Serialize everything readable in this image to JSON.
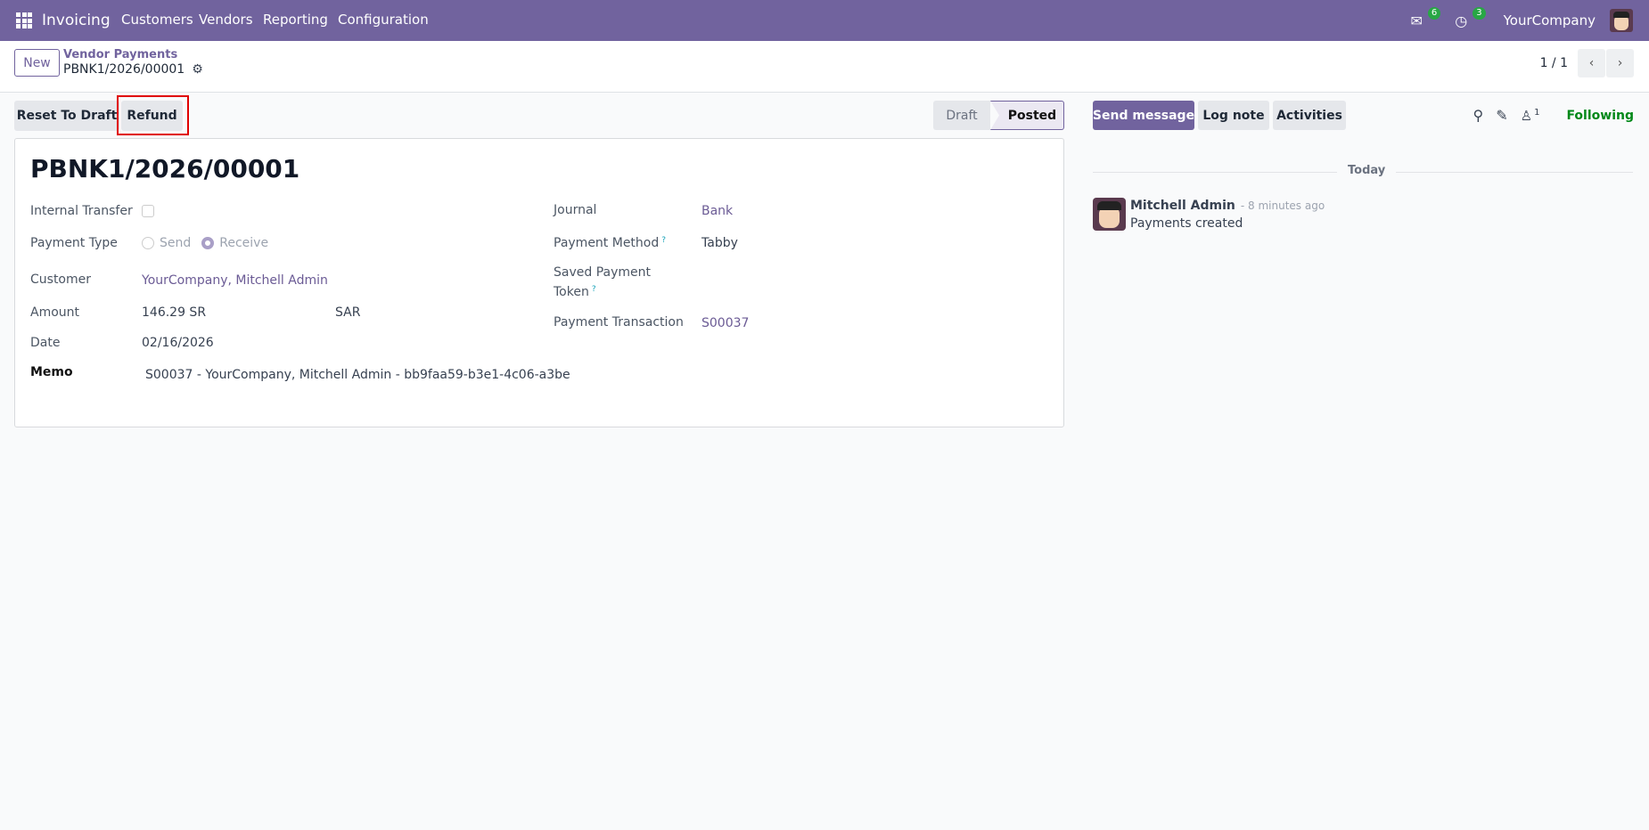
{
  "navbar": {
    "app": "Invoicing",
    "menus": [
      "Customers",
      "Vendors",
      "Reporting",
      "Configuration"
    ],
    "messages_count": "6",
    "activities_count": "3",
    "company": "YourCompany"
  },
  "control_panel": {
    "new_label": "New",
    "breadcrumb_parent": "Vendor Payments",
    "record_name": "PBNK1/2026/00001",
    "pager": "1 / 1"
  },
  "actions": {
    "reset_label": "Reset To Draft",
    "refund_label": "Refund"
  },
  "statusbar": {
    "stages": [
      "Draft",
      "Posted"
    ],
    "active": "Posted"
  },
  "form": {
    "title": "PBNK1/2026/00001",
    "internal_transfer_label": "Internal Transfer",
    "internal_transfer": false,
    "payment_type_label": "Payment Type",
    "payment_type_options": [
      "Send",
      "Receive"
    ],
    "payment_type": "Receive",
    "customer_label": "Customer",
    "customer": "YourCompany, Mitchell Admin",
    "amount_label": "Amount",
    "amount": "146.29 SR",
    "currency": "SAR",
    "date_label": "Date",
    "date": "02/16/2026",
    "memo_label": "Memo",
    "memo": "S00037 - YourCompany, Mitchell Admin - bb9faa59-b3e1-4c06-a3be",
    "journal_label": "Journal",
    "journal": "Bank",
    "payment_method_label": "Payment Method",
    "payment_method": "Tabby",
    "token_label_1": "Saved Payment",
    "token_label_2": "Token",
    "transaction_label": "Payment Transaction",
    "transaction": "S00037",
    "help_mark": "?"
  },
  "chatter": {
    "send_message": "Send message",
    "log_note": "Log note",
    "activities": "Activities",
    "followers_count": "1",
    "following": "Following",
    "date_separator": "Today",
    "messages": [
      {
        "author": "Mitchell Admin",
        "time": "- 8 minutes ago",
        "body": "Payments created"
      }
    ]
  },
  "colors": {
    "navbar": "#71639e",
    "link": "#6b5b95",
    "following": "#008818",
    "highlight": "#e00000"
  }
}
